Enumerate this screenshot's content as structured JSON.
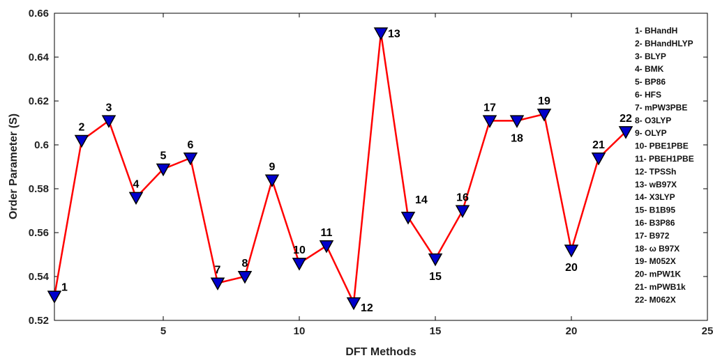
{
  "chart_data": {
    "type": "line",
    "xlabel": "DFT Methods",
    "ylabel": "Order Parameter (S)",
    "xlim": [
      1,
      25
    ],
    "ylim": [
      0.52,
      0.66
    ],
    "xticks": [
      5,
      10,
      15,
      20,
      25
    ],
    "yticks": [
      0.52,
      0.54,
      0.56,
      0.58,
      0.6,
      0.62,
      0.64,
      0.66
    ],
    "ytick_labels": [
      "0.52",
      "0.54",
      "0.56",
      "0.58",
      "0.6",
      "0.62",
      "0.64",
      "0.66"
    ],
    "grid": false,
    "line_color": "#ff0000",
    "marker": "triangle-down",
    "marker_color": "#0000cc",
    "legend_position": "right",
    "x": [
      1,
      2,
      3,
      4,
      5,
      6,
      7,
      8,
      9,
      10,
      11,
      12,
      13,
      14,
      15,
      16,
      17,
      18,
      19,
      20,
      21,
      22
    ],
    "y": [
      0.531,
      0.602,
      0.611,
      0.576,
      0.589,
      0.594,
      0.537,
      0.54,
      0.584,
      0.546,
      0.554,
      0.528,
      0.651,
      0.567,
      0.548,
      0.57,
      0.611,
      0.611,
      0.614,
      0.552,
      0.594,
      0.606
    ],
    "point_labels": [
      "1",
      "2",
      "3",
      "4",
      "5",
      "6",
      "7",
      "8",
      "9",
      "10",
      "11",
      "12",
      "13",
      "14",
      "15",
      "16",
      "17",
      "18",
      "19",
      "20",
      "21",
      "22"
    ],
    "legend": [
      "1- BHandH",
      "2- BHandHLYP",
      "3- BLYP",
      "4- BMK",
      "5- BP86",
      "6- HFS",
      "7- mPW3PBE",
      "8- O3LYP",
      "9- OLYP",
      "10- PBE1PBE",
      "11- PBEH1PBE",
      "12- TPSSh",
      "13- wB97X",
      "14- X3LYP",
      "15- B1B95",
      "16- B3P86",
      "17- B972",
      "18- ω B97X",
      "19- M052X",
      "20- mPW1K",
      "21- mPWB1k",
      "22- M062X"
    ]
  }
}
